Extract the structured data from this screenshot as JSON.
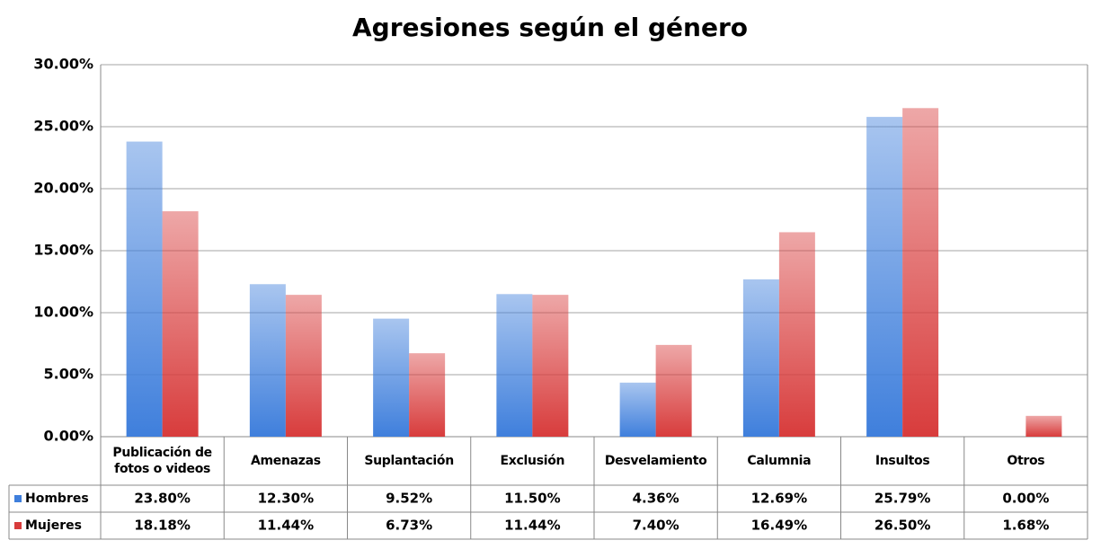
{
  "chart_data": {
    "type": "bar",
    "title": "Agresiones según el género",
    "categories": [
      "Publicación de fotos o videos",
      "Amenazas",
      "Suplantación",
      "Exclusión",
      "Desvelamiento",
      "Calumnia",
      "Insultos",
      "Otros"
    ],
    "series": [
      {
        "name": "Hombres",
        "color": "#3f7fdc",
        "values": [
          23.8,
          12.3,
          9.52,
          11.5,
          4.36,
          12.69,
          25.79,
          0.0
        ],
        "value_labels": [
          "23.80%",
          "12.30%",
          "9.52%",
          "11.50%",
          "4.36%",
          "12.69%",
          "25.79%",
          "0.00%"
        ]
      },
      {
        "name": "Mujeres",
        "color": "#d83c3c",
        "values": [
          18.18,
          11.44,
          6.73,
          11.44,
          7.4,
          16.49,
          26.5,
          1.68
        ],
        "value_labels": [
          "18.18%",
          "11.44%",
          "6.73%",
          "11.44%",
          "7.40%",
          "16.49%",
          "26.50%",
          "1.68%"
        ]
      }
    ],
    "ylim": [
      0,
      30
    ],
    "yticks": [
      {
        "value": 0,
        "label": "0.00%"
      },
      {
        "value": 5,
        "label": "5.00%"
      },
      {
        "value": 10,
        "label": "10.00%"
      },
      {
        "value": 15,
        "label": "15.00%"
      },
      {
        "value": 20,
        "label": "20.00%"
      },
      {
        "value": 25,
        "label": "25.00%"
      },
      {
        "value": 30,
        "label": "30.00%"
      }
    ],
    "grid": true
  }
}
